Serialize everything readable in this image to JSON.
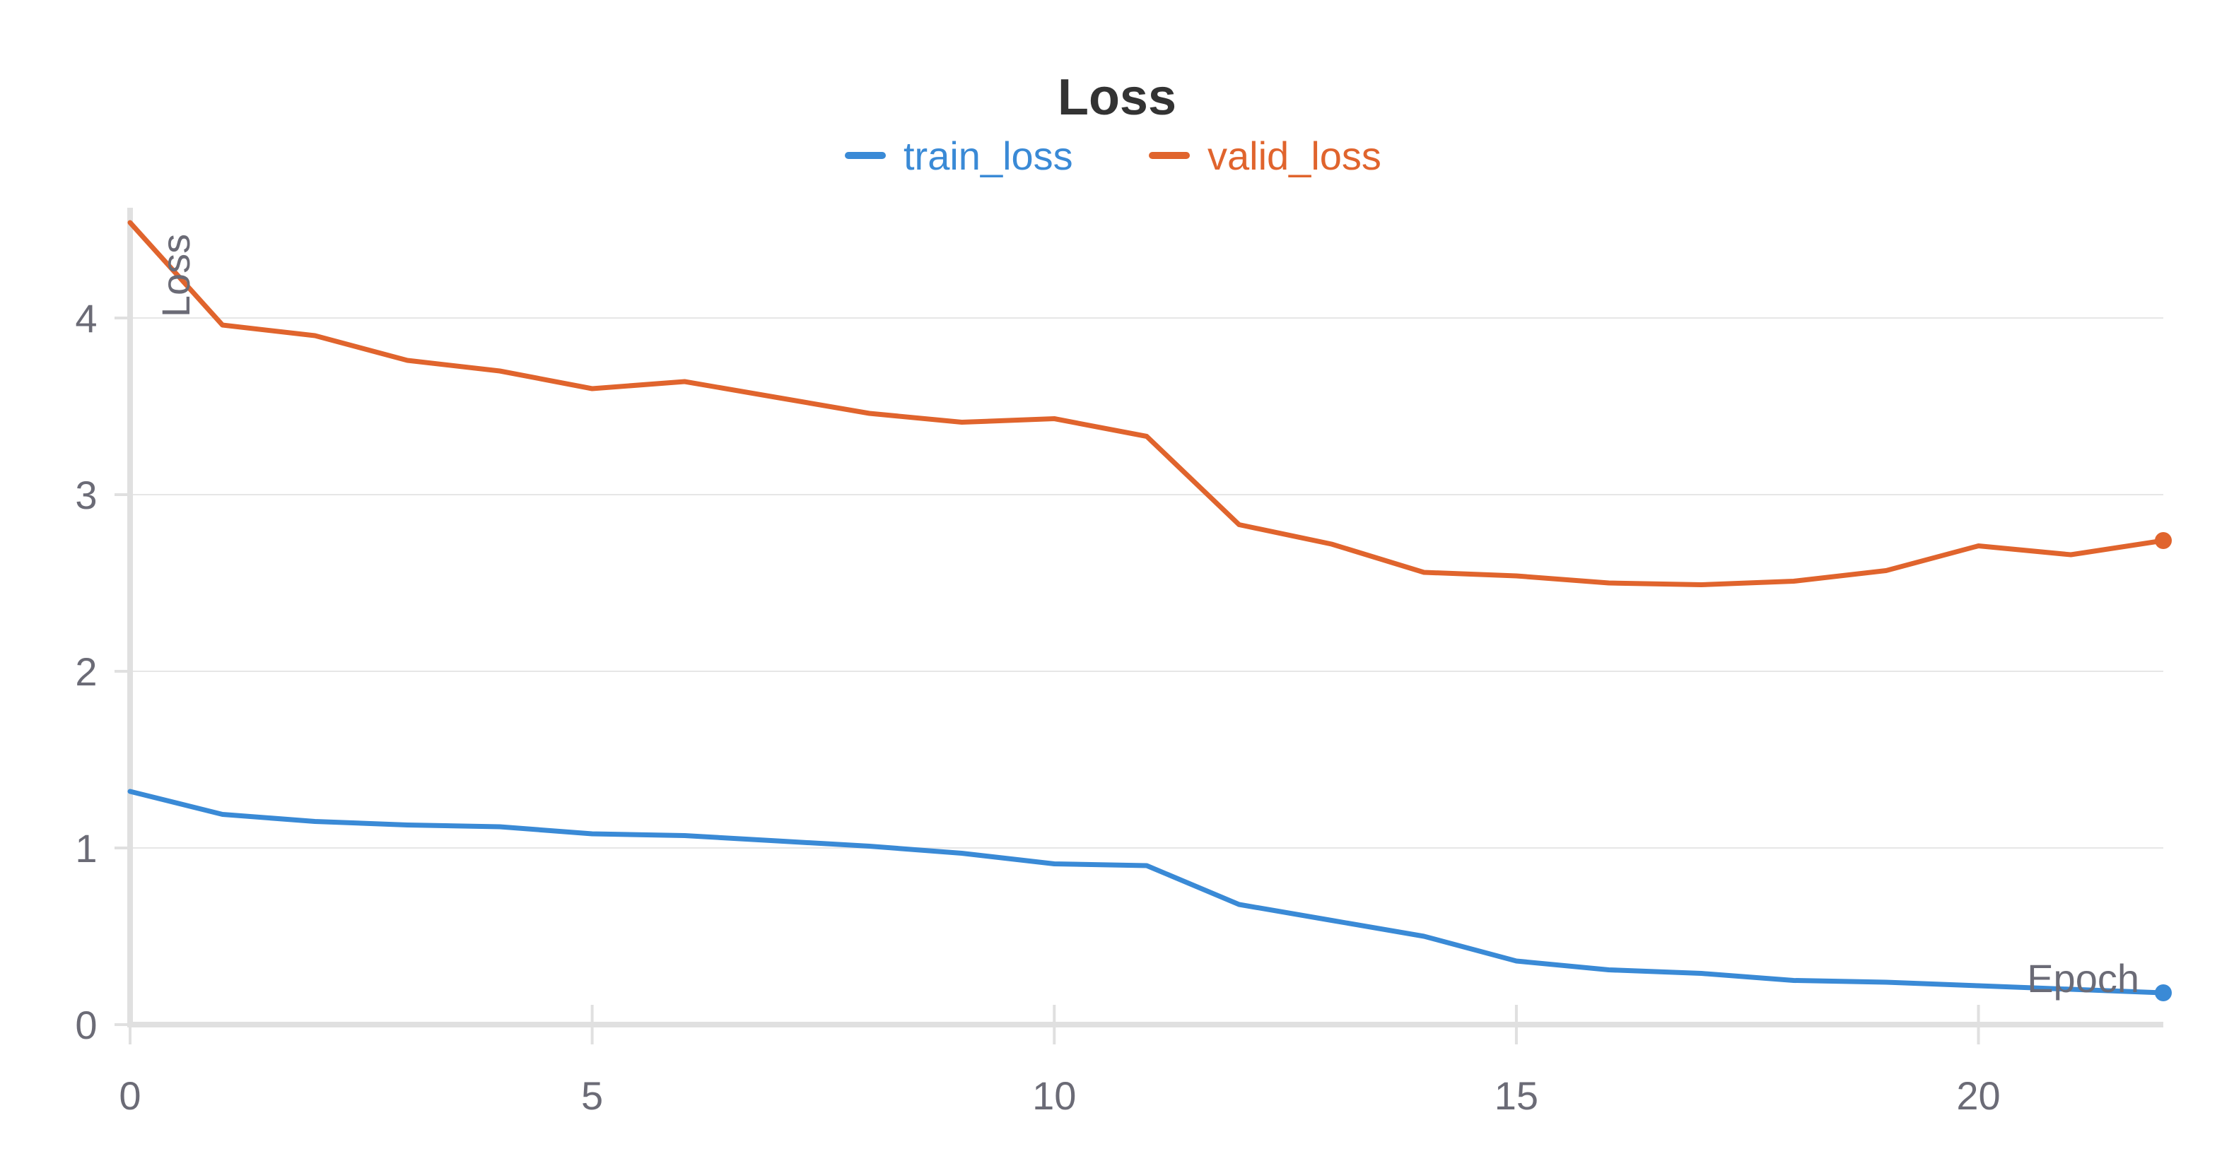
{
  "chart_data": {
    "type": "line",
    "title": "Loss",
    "xlabel": "Epoch",
    "ylabel": "Loss",
    "xlim": [
      0,
      22
    ],
    "ylim": [
      0,
      4.6
    ],
    "x_ticks": [
      0,
      5,
      10,
      15,
      20
    ],
    "y_ticks": [
      0,
      1,
      2,
      3,
      4
    ],
    "grid": true,
    "legend_position": "top-center",
    "x": [
      0,
      1,
      2,
      3,
      4,
      5,
      6,
      7,
      8,
      9,
      10,
      11,
      12,
      13,
      14,
      15,
      16,
      17,
      18,
      19,
      20,
      21,
      22
    ],
    "series": [
      {
        "name": "train_loss",
        "color": "#3a8ad6",
        "values": [
          1.32,
          1.19,
          1.15,
          1.13,
          1.12,
          1.08,
          1.07,
          1.04,
          1.01,
          0.97,
          0.91,
          0.9,
          0.68,
          0.59,
          0.5,
          0.36,
          0.31,
          0.29,
          0.25,
          0.24,
          0.22,
          0.2,
          0.18
        ]
      },
      {
        "name": "valid_loss",
        "color": "#e0642d",
        "values": [
          4.54,
          3.96,
          3.9,
          3.76,
          3.7,
          3.6,
          3.64,
          3.55,
          3.46,
          3.41,
          3.43,
          3.33,
          2.83,
          2.72,
          2.56,
          2.54,
          2.5,
          2.49,
          2.51,
          2.57,
          2.71,
          2.66,
          2.74
        ]
      }
    ]
  }
}
